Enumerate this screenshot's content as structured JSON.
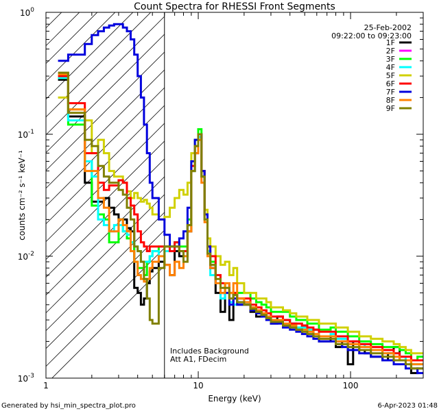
{
  "chart_data": {
    "type": "line",
    "title": "Count Spectra for RHESSI Front Segments",
    "xlabel": "Energy (keV)",
    "ylabel": "counts cm⁻² s⁻¹ keV⁻¹",
    "xscale": "log",
    "yscale": "log",
    "xlim": [
      1,
      300
    ],
    "ylim": [
      0.001,
      1
    ],
    "x_tick_labels": [
      "1",
      "10",
      "100"
    ],
    "x_tick_values": [
      1,
      10,
      100
    ],
    "y_tick_labels": [
      {
        "base": "10",
        "exp": "0"
      },
      {
        "base": "10",
        "exp": "-1"
      },
      {
        "base": "10",
        "exp": "-2"
      },
      {
        "base": "10",
        "exp": "-3"
      }
    ],
    "y_tick_values": [
      1,
      0.1,
      0.01,
      0.001
    ],
    "date": "25-Feb-2002",
    "time_range": "09:22:00 to 09:23:00",
    "legend_position": "top-right",
    "annotations": [
      "Includes Background",
      "Att A1, FDecim"
    ],
    "shaded_region": {
      "x_max": 6,
      "pattern": "diagonal hatch"
    },
    "energy_edges": [
      1.2,
      1.4,
      1.6,
      1.8,
      2.0,
      2.2,
      2.4,
      2.6,
      2.8,
      3.0,
      3.2,
      3.4,
      3.6,
      3.8,
      4.0,
      4.2,
      4.4,
      4.6,
      4.8,
      5.0,
      5.5,
      6.0,
      6.5,
      7.0,
      7.5,
      8.0,
      8.5,
      9.0,
      9.5,
      10.0,
      10.5,
      11.0,
      11.5,
      12.0,
      13.0,
      14.0,
      15.0,
      16.0,
      17.0,
      18.0,
      20.0,
      22.0,
      24.0,
      26.0,
      28.0,
      30.0,
      33.0,
      36.0,
      40.0,
      44.0,
      48.0,
      52.0,
      57.0,
      62.0,
      68.0,
      74.0,
      80.0,
      88.0,
      96.0,
      104.0,
      114.0,
      124.0,
      136.0,
      148.0,
      162.0,
      176.0,
      192.0,
      210.0,
      230.0,
      250.0,
      275.0,
      300.0
    ],
    "series": [
      {
        "name": "1F",
        "color": "#000000",
        "values": [
          0.28,
          0.14,
          0.14,
          0.04,
          0.028,
          0.028,
          0.03,
          0.025,
          0.022,
          0.02,
          0.02,
          0.017,
          0.016,
          0.0055,
          0.005,
          0.004,
          0.0045,
          0.006,
          0.0075,
          0.008,
          0.009,
          0.0085,
          0.007,
          0.011,
          0.01,
          0.01,
          0.016,
          0.05,
          0.07,
          0.09,
          0.045,
          0.022,
          0.01,
          0.008,
          0.005,
          0.0035,
          0.006,
          0.003,
          0.005,
          0.004,
          0.004,
          0.0035,
          0.0032,
          0.0036,
          0.0032,
          0.0028,
          0.0032,
          0.003,
          0.0028,
          0.0025,
          0.0027,
          0.0022,
          0.0025,
          0.002,
          0.002,
          0.0022,
          0.0018,
          0.002,
          0.0013,
          0.002,
          0.0017,
          0.0016,
          0.0015,
          0.0015,
          0.0014,
          0.0016,
          0.0018,
          0.0014,
          0.0014,
          0.0011,
          0.0012
        ]
      },
      {
        "name": "2F",
        "color": "#ff00ff",
        "values": []
      },
      {
        "name": "3F",
        "color": "#00ff00",
        "values": [
          0.29,
          0.12,
          0.12,
          0.06,
          0.026,
          0.022,
          0.02,
          0.013,
          0.013,
          0.02,
          0.016,
          0.014,
          0.013,
          0.009,
          0.008,
          0.008,
          0.007,
          0.009,
          0.01,
          0.011,
          0.012,
          0.012,
          0.012,
          0.013,
          0.012,
          0.012,
          0.02,
          0.06,
          0.09,
          0.11,
          0.05,
          0.022,
          0.011,
          0.009,
          0.006,
          0.005,
          0.006,
          0.005,
          0.005,
          0.005,
          0.005,
          0.0045,
          0.0042,
          0.004,
          0.0038,
          0.0035,
          0.0035,
          0.0035,
          0.0032,
          0.003,
          0.003,
          0.0028,
          0.0028,
          0.0025,
          0.0025,
          0.0026,
          0.0024,
          0.0024,
          0.0022,
          0.0022,
          0.002,
          0.002,
          0.0019,
          0.0019,
          0.0018,
          0.0018,
          0.0018,
          0.0017,
          0.0016,
          0.0014,
          0.0015
        ]
      },
      {
        "name": "4F",
        "color": "#00ffff",
        "values": [
          0.29,
          0.13,
          0.13,
          0.06,
          0.045,
          0.02,
          0.018,
          0.016,
          0.018,
          0.018,
          0.016,
          0.015,
          0.013,
          0.012,
          0.011,
          0.009,
          0.009,
          0.009,
          0.01,
          0.011,
          0.01,
          0.011,
          0.011,
          0.013,
          0.011,
          0.011,
          0.018,
          0.05,
          0.08,
          0.095,
          0.045,
          0.02,
          0.011,
          0.007,
          0.006,
          0.0045,
          0.005,
          0.0042,
          0.004,
          0.0042,
          0.0042,
          0.0038,
          0.0036,
          0.0034,
          0.0032,
          0.003,
          0.003,
          0.003,
          0.0028,
          0.0026,
          0.0026,
          0.0025,
          0.0025,
          0.0022,
          0.0022,
          0.0023,
          0.0021,
          0.0021,
          0.002,
          0.002,
          0.0019,
          0.0018,
          0.0017,
          0.0017,
          0.0016,
          0.0016,
          0.0016,
          0.0015,
          0.0014,
          0.0013,
          0.0013
        ]
      },
      {
        "name": "5F",
        "color": "#d0d000",
        "values": [
          0.2,
          0.16,
          0.16,
          0.13,
          0.07,
          0.09,
          0.07,
          0.05,
          0.045,
          0.045,
          0.04,
          0.034,
          0.03,
          0.033,
          0.03,
          0.028,
          0.029,
          0.027,
          0.025,
          0.022,
          0.02,
          0.021,
          0.025,
          0.03,
          0.035,
          0.032,
          0.04,
          0.07,
          0.09,
          0.1,
          0.05,
          0.024,
          0.014,
          0.012,
          0.01,
          0.0085,
          0.009,
          0.007,
          0.008,
          0.006,
          0.005,
          0.005,
          0.0045,
          0.0045,
          0.0042,
          0.0038,
          0.0038,
          0.0036,
          0.0034,
          0.0032,
          0.0032,
          0.003,
          0.003,
          0.0028,
          0.0028,
          0.0028,
          0.0026,
          0.0026,
          0.0024,
          0.0024,
          0.0022,
          0.0022,
          0.0021,
          0.0021,
          0.002,
          0.002,
          0.0019,
          0.0018,
          0.0017,
          0.0016,
          0.0016
        ]
      },
      {
        "name": "6F",
        "color": "#ff0000",
        "values": [
          0.3,
          0.18,
          0.18,
          0.07,
          0.07,
          0.04,
          0.035,
          0.038,
          0.038,
          0.042,
          0.04,
          0.03,
          0.026,
          0.022,
          0.016,
          0.013,
          0.012,
          0.011,
          0.012,
          0.012,
          0.012,
          0.012,
          0.011,
          0.013,
          0.011,
          0.011,
          0.018,
          0.055,
          0.08,
          0.1,
          0.05,
          0.022,
          0.012,
          0.01,
          0.007,
          0.006,
          0.006,
          0.005,
          0.005,
          0.0045,
          0.0045,
          0.004,
          0.0038,
          0.0036,
          0.0034,
          0.0032,
          0.0032,
          0.003,
          0.0028,
          0.0028,
          0.0027,
          0.0026,
          0.0025,
          0.0024,
          0.0024,
          0.0024,
          0.0022,
          0.0022,
          0.002,
          0.002,
          0.0019,
          0.0019,
          0.0018,
          0.0018,
          0.0017,
          0.0017,
          0.0016,
          0.0015,
          0.0015,
          0.0014,
          0.0014
        ]
      },
      {
        "name": "7F",
        "color": "#0000dd",
        "values": [
          0.4,
          0.45,
          0.45,
          0.55,
          0.65,
          0.7,
          0.75,
          0.78,
          0.8,
          0.8,
          0.75,
          0.7,
          0.6,
          0.45,
          0.3,
          0.2,
          0.12,
          0.07,
          0.04,
          0.03,
          0.02,
          0.015,
          0.012,
          0.012,
          0.014,
          0.016,
          0.025,
          0.06,
          0.09,
          0.1,
          0.05,
          0.022,
          0.012,
          0.008,
          0.006,
          0.005,
          0.005,
          0.004,
          0.0045,
          0.004,
          0.004,
          0.0036,
          0.0034,
          0.0032,
          0.003,
          0.0028,
          0.0028,
          0.0026,
          0.0025,
          0.0024,
          0.0023,
          0.0022,
          0.0021,
          0.002,
          0.002,
          0.002,
          0.0019,
          0.0018,
          0.0017,
          0.0017,
          0.0016,
          0.0016,
          0.0015,
          0.0015,
          0.0014,
          0.0014,
          0.0013,
          0.0013,
          0.0012,
          0.0012,
          0.0011
        ]
      },
      {
        "name": "8F",
        "color": "#ff8000",
        "values": [
          0.31,
          0.16,
          0.16,
          0.05,
          0.05,
          0.03,
          0.025,
          0.016,
          0.016,
          0.02,
          0.018,
          0.016,
          0.011,
          0.009,
          0.007,
          0.0065,
          0.0062,
          0.0065,
          0.008,
          0.009,
          0.01,
          0.0085,
          0.007,
          0.009,
          0.008,
          0.01,
          0.016,
          0.05,
          0.07,
          0.09,
          0.04,
          0.019,
          0.01,
          0.008,
          0.006,
          0.005,
          0.006,
          0.005,
          0.006,
          0.0045,
          0.0042,
          0.0038,
          0.0036,
          0.0034,
          0.0032,
          0.003,
          0.003,
          0.0028,
          0.0027,
          0.0025,
          0.0025,
          0.0024,
          0.0023,
          0.0022,
          0.0022,
          0.0022,
          0.002,
          0.002,
          0.0019,
          0.0019,
          0.0018,
          0.0018,
          0.0017,
          0.0017,
          0.0016,
          0.0016,
          0.0015,
          0.0014,
          0.0014,
          0.0013,
          0.0013
        ]
      },
      {
        "name": "9F",
        "color": "#808000",
        "values": [
          0.32,
          0.15,
          0.15,
          0.09,
          0.08,
          0.055,
          0.045,
          0.04,
          0.04,
          0.035,
          0.032,
          0.025,
          0.02,
          0.012,
          0.011,
          0.009,
          0.0065,
          0.0045,
          0.003,
          0.0028,
          0.008,
          0.012,
          0.012,
          0.012,
          0.011,
          0.009,
          0.018,
          0.05,
          0.08,
          0.1,
          0.045,
          0.02,
          0.0105,
          0.0085,
          0.0065,
          0.0055,
          0.0055,
          0.0045,
          0.0048,
          0.0042,
          0.004,
          0.0037,
          0.0035,
          0.0033,
          0.0031,
          0.0029,
          0.0029,
          0.0027,
          0.0026,
          0.0025,
          0.0024,
          0.0023,
          0.0022,
          0.0021,
          0.0021,
          0.0021,
          0.0019,
          0.0019,
          0.0018,
          0.0018,
          0.0017,
          0.0017,
          0.0016,
          0.0016,
          0.0015,
          0.0015,
          0.0014,
          0.0014,
          0.0013,
          0.0012,
          0.0012
        ]
      }
    ]
  },
  "footer": {
    "generator": "Generated by hsi_min_spectra_plot.pro",
    "timestamp": "6-Apr-2023 01:48"
  }
}
